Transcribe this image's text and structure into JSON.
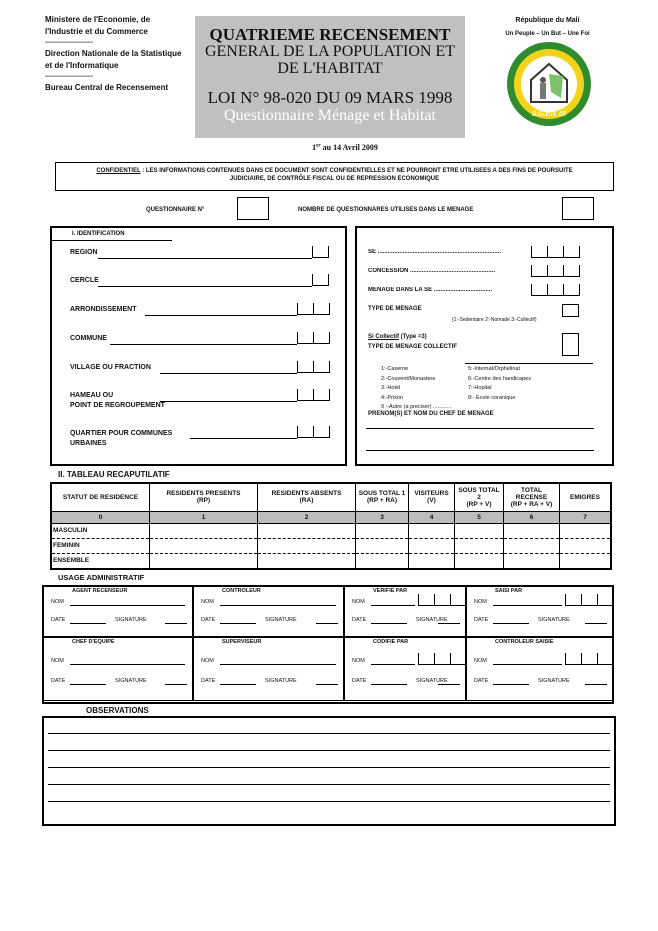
{
  "header": {
    "left": [
      "Ministere de l'Economie, de",
      "l'Industrie et du Commerce",
      "------------------------",
      "Direction Nationale de la Statistique",
      " et de l'Informatique",
      "------------------------",
      "Bureau Central de Recensement"
    ],
    "title_lines": [
      "QUATRIEME RECENSEMENT",
      "GENERAL DE LA  POPULATION ET",
      "DE L'HABITAT"
    ],
    "law": "LOI N° 98-020 DU 09 MARS 1998",
    "subtitle": "Questionnaire Ménage et Habitat",
    "republic": "République du Mali",
    "motto": "Un Peuple – Un But – Une Foi",
    "logo_text": "R.G.P.H. 09",
    "logo_ring": "4ème RECENSEMENT GENERAL DE LA POPULATION ET DE L'HABITAT",
    "date_sup": "er",
    "date_pre": "1",
    "date": " au 14 Avril 2009"
  },
  "confidential": {
    "label": "CONFIDENTIEL",
    "text1": " : LES INFORMATIONS CONTENUES DANS CE DOCUMENT SONT CONFIDENTIELLES ET NE POURRONT ETRE UTILISEES  A DES FINS DE POURSUITE",
    "text2": "JUDICIAIRE, DE CONTRÔLE FISCAL OU DE REPRESSION ECONOMIQUE"
  },
  "questionnaire_no": "QUESTIONNAIRE N°",
  "nb_questionnaires": "NOMBRE DE QUESTIONNARES UTILISES DANS LE MENAGE",
  "identification": {
    "title": "I. IDENTIFICATION",
    "fields": [
      "REGION",
      "CERCLE",
      "ARRONDISSEMENT",
      "COMMUNE",
      "VILLAGE OU FRACTION",
      "HAMEAU OU",
      "POINT DE REGROUPEMENT",
      "QUARTIER POUR COMMUNES",
      "URBAINES"
    ]
  },
  "menage": {
    "se": "SE ..........................................................................",
    "concession": "CONCESSION ...................................................",
    "menage_se": "MENAGE DANS LA SE ...................................",
    "type": "TYPE DE MENAGE",
    "type_legend": "(1:-Sedentaire  2:-Nomade  3:-Collectif)",
    "si_collectif": "Si Collectif",
    "si_collectif_note": " (Type =3)",
    "type_collectif": "TYPE DE MENAGE COLLECTIF",
    "options_left": [
      "1:-Caserne",
      "2:-Couvent/Monastere",
      "3:-Hotel",
      "4:-Prison"
    ],
    "options_right": [
      "5:-Internat/Orphelinat",
      "6:-Centre des handicapes",
      "7:-Hopital",
      "8:- Ecole coranique"
    ],
    "other": "9 :-Autre (a preciser) ............",
    "chef": "PRENOM(S) ET NOM DU CHEF DE MENAGE"
  },
  "recap": {
    "title": "II. TABLEAU RECAPUTILATIF",
    "headers": [
      [
        "STATUT DE RESIDENCE",
        ""
      ],
      [
        "RESIDENTS PRESENTS",
        "(RP)"
      ],
      [
        "RESIDENTS ABSENTS",
        "(RA)"
      ],
      [
        "SOUS TOTAL 1",
        "(RP + RA)"
      ],
      [
        "VISITEURS",
        "(V)"
      ],
      [
        "SOUS TOTAL 2",
        "(RP + V)"
      ],
      [
        "TOTAL RECENSE",
        "(RP + RA + V)"
      ],
      [
        "EMIGRES",
        ""
      ]
    ],
    "numbers": [
      "0",
      "1",
      "2",
      "3",
      "4",
      "5",
      "6",
      "7"
    ],
    "rows": [
      "MASCULIN",
      "FEMININ",
      "ENSEMBLE"
    ]
  },
  "admin": {
    "title": "USAGE ADMINISTRATIF",
    "roles_top": [
      "AGENT RECENSEUR",
      "CONTROLEUR",
      "VERIFIE PAR",
      "SAISI PAR"
    ],
    "roles_bottom": [
      "CHEF D'EQUIPE",
      "SUPERVISEUR",
      "CODIFIE PAR",
      "CONTROLEUR SAISIE"
    ],
    "nom": "NOM",
    "date": "DATE",
    "signature": "SIGNATURE"
  },
  "observations": {
    "title": "OBSERVATIONS"
  },
  "colors": {
    "title_bg": "#c0c0c0",
    "logo_green": "#2e8b2e",
    "logo_yellow": "#f2d21b"
  }
}
